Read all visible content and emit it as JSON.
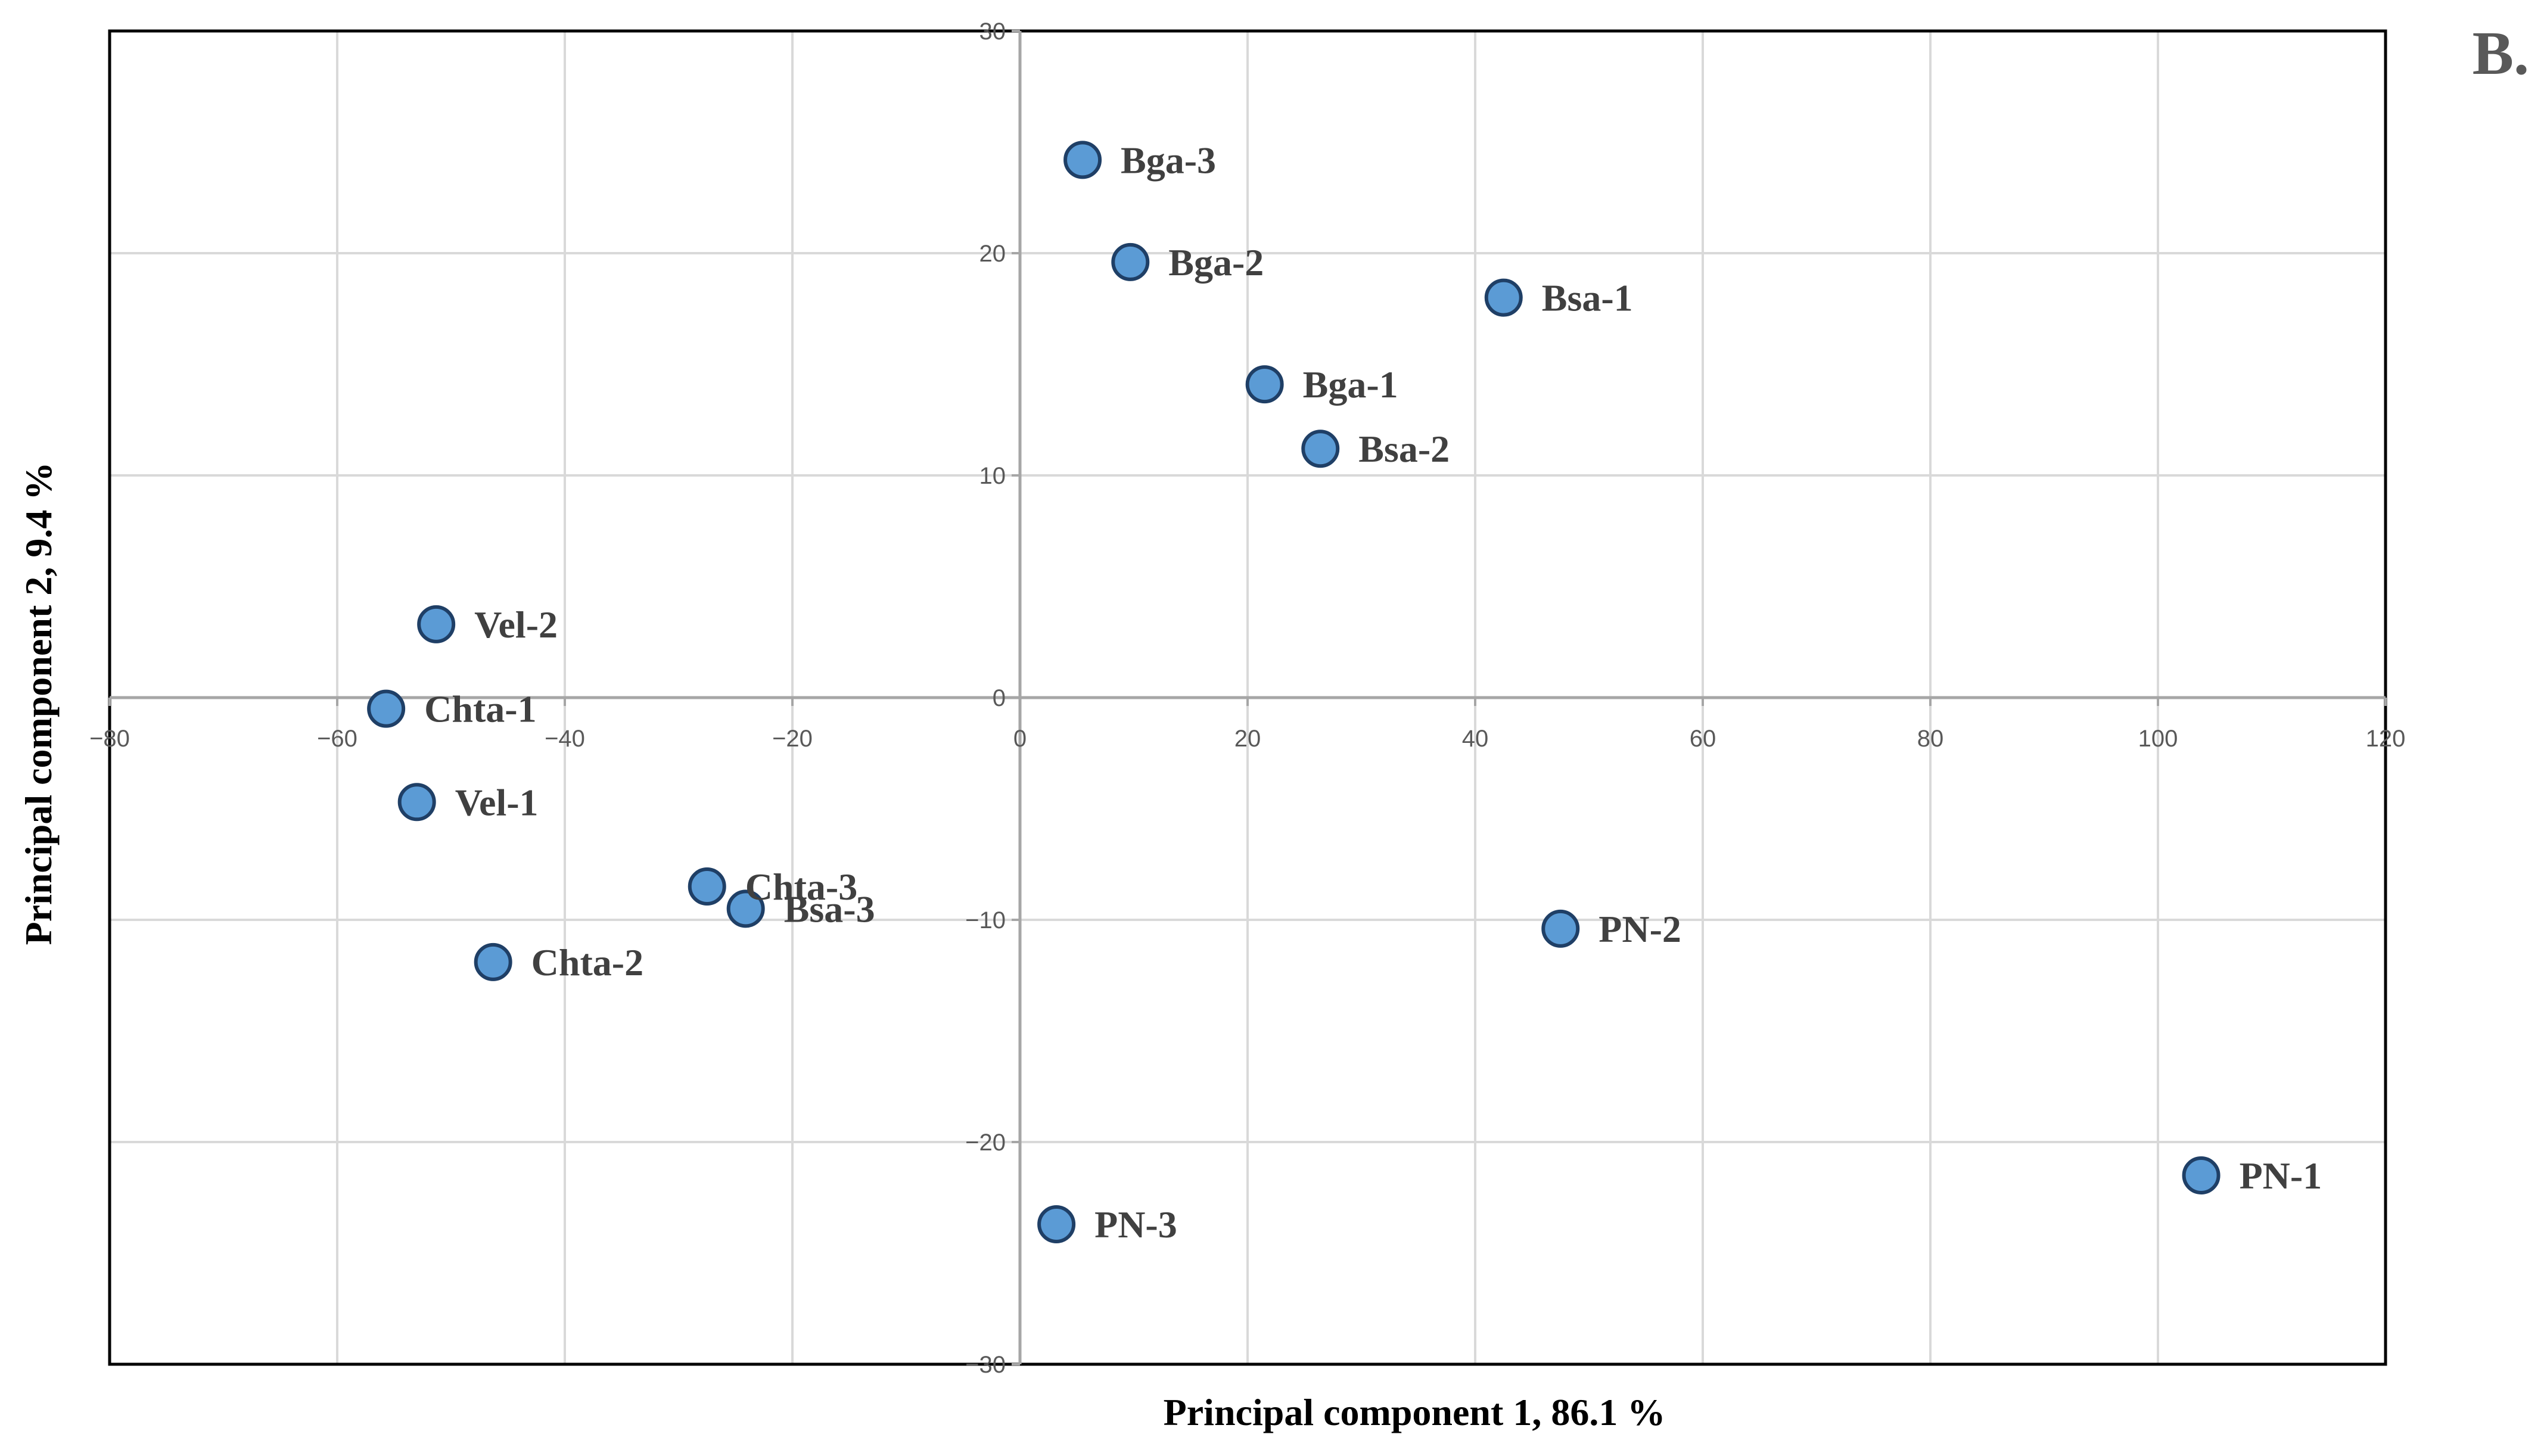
{
  "chart_data": {
    "type": "scatter",
    "panel_label": "B.",
    "xlabel": "Principal component 1, 86.1 %",
    "ylabel": "Principal component 2, 9.4 %",
    "xlim": [
      -80,
      120
    ],
    "ylim": [
      -30,
      30
    ],
    "x_ticks": [
      -80,
      -60,
      -40,
      -20,
      0,
      20,
      40,
      60,
      80,
      100,
      120
    ],
    "y_ticks": [
      -30,
      -20,
      -10,
      0,
      10,
      20,
      30
    ],
    "grid": true,
    "marker_color": "#5b9bd5",
    "marker_edge_color": "#1f3f66",
    "points": [
      {
        "label": "Bga-3",
        "x": 5.5,
        "y": 24.2
      },
      {
        "label": "Bga-2",
        "x": 9.7,
        "y": 19.6
      },
      {
        "label": "Bsa-1",
        "x": 42.5,
        "y": 18.0
      },
      {
        "label": "Bga-1",
        "x": 21.5,
        "y": 14.1
      },
      {
        "label": "Bsa-2",
        "x": 26.4,
        "y": 11.2
      },
      {
        "label": "Vel-2",
        "x": -51.3,
        "y": 3.3
      },
      {
        "label": "Chta-1",
        "x": -55.7,
        "y": -0.5
      },
      {
        "label": "Vel-1",
        "x": -53.0,
        "y": -4.7
      },
      {
        "label": "Chta-3",
        "x": -27.5,
        "y": -8.5
      },
      {
        "label": "Bsa-3",
        "x": -24.1,
        "y": -9.5
      },
      {
        "label": "Chta-2",
        "x": -46.3,
        "y": -11.9
      },
      {
        "label": "PN-2",
        "x": 47.5,
        "y": -10.4
      },
      {
        "label": "PN-3",
        "x": 3.2,
        "y": -23.7
      },
      {
        "label": "PN-1",
        "x": 103.8,
        "y": -21.5
      }
    ]
  }
}
